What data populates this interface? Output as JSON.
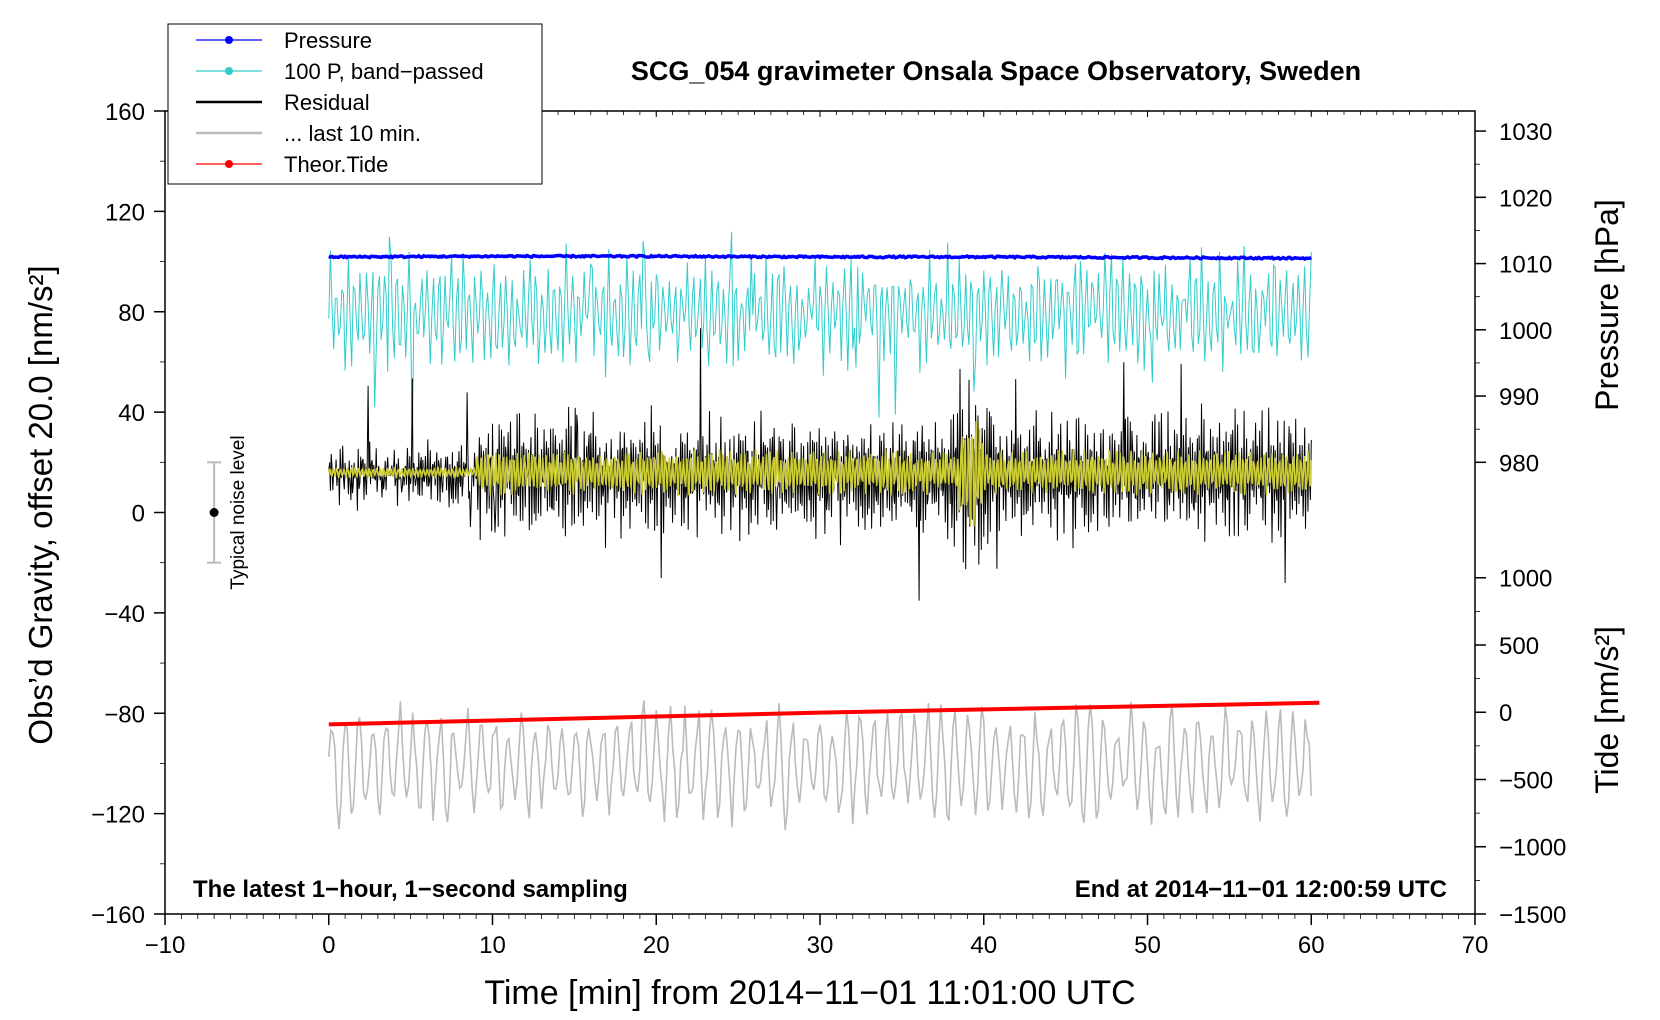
{
  "chart_data": {
    "type": "line",
    "title": "SCG_054 gravimeter Onsala Space Observatory, Sweden",
    "xlabel": "Time [min] from 2014−11−01 11:01:00 UTC",
    "ylabel_left": "Obs’d Gravity, offset 20.0 [nm/s²]",
    "ylabel_right_top": "Pressure [hPa]",
    "ylabel_right_bottom": "Tide [nm/s²]",
    "xlim": [
      -10,
      70
    ],
    "ylim_left": [
      -160,
      160
    ],
    "x_ticks": [
      -10,
      0,
      10,
      20,
      30,
      40,
      50,
      60,
      70
    ],
    "x_tick_labels": [
      "−10",
      "0",
      "10",
      "20",
      "30",
      "40",
      "50",
      "60",
      "70"
    ],
    "y_left_ticks": [
      -160,
      -120,
      -80,
      -40,
      0,
      40,
      80,
      120,
      160
    ],
    "y_left_tick_labels": [
      "−160",
      "−120",
      "−80",
      "−40",
      "0",
      "40",
      "80",
      "120",
      "160"
    ],
    "pressure_axis": {
      "note": "right axis, upper part",
      "ticks": [
        980,
        990,
        1000,
        1010,
        1020,
        1030
      ],
      "tick_labels": [
        "980",
        "990",
        "1000",
        "1010",
        "1020",
        "1030"
      ],
      "gravity_equiv": {
        "980": 20,
        "1030": 152
      }
    },
    "tide_axis": {
      "note": "right axis, lower part",
      "ticks": [
        -1500,
        -1000,
        -500,
        0,
        500,
        1000
      ],
      "tick_labels": [
        "−1500",
        "−1000",
        "−500",
        "0",
        "500",
        "1000"
      ],
      "gravity_equiv": {
        "-1500": -160,
        "1000": -26
      }
    },
    "legend": [
      {
        "label": "Pressure",
        "color": "#0000ff",
        "marker": "dot"
      },
      {
        "label": "100 P, band−passed",
        "color": "#33cccc",
        "marker": "dot"
      },
      {
        "label": "Residual",
        "color": "#000000",
        "marker": "none"
      },
      {
        "label": "... last 10 min.",
        "color": "#bbbbbb",
        "marker": "none"
      },
      {
        "label": "Theor.Tide",
        "color": "#ff0000",
        "marker": "dot"
      }
    ],
    "series": [
      {
        "name": "Pressure",
        "color": "#0000ff",
        "unit": "hPa",
        "x": [
          0,
          10,
          20,
          30,
          40,
          50,
          60
        ],
        "values": [
          1011.0,
          1011.1,
          1011.1,
          1011.0,
          1011.0,
          1010.9,
          1010.8
        ]
      },
      {
        "name": "100 P, band−passed",
        "color": "#33cccc",
        "unit": "nm/s² (gravity axis)",
        "x": [
          0,
          10,
          20,
          30,
          40,
          50,
          60
        ],
        "center": 80,
        "amplitude": 22
      },
      {
        "name": "Residual",
        "color": "#000000",
        "unit": "nm/s²",
        "x": [
          0,
          10,
          20,
          30,
          40,
          50,
          60
        ],
        "center": 15,
        "amplitude": 18
      },
      {
        "name": "Residual (smoothed)",
        "color": "#cccc33",
        "unit": "nm/s²",
        "x": [
          0,
          10,
          20,
          30,
          40,
          50,
          60
        ],
        "center": 16,
        "amplitude": 8
      },
      {
        "name": "... last 10 min.",
        "color": "#bbbbbb",
        "unit": "nm/s²",
        "x": [
          0,
          10,
          20,
          30,
          40,
          50,
          60
        ],
        "center": -100,
        "amplitude": 18
      },
      {
        "name": "Theor.Tide",
        "color": "#ff0000",
        "unit": "nm/s²",
        "x": [
          0,
          30,
          60.5
        ],
        "values": [
          -90,
          -3,
          70
        ]
      }
    ],
    "noise_marker": {
      "x": -7,
      "center": 0,
      "low": -20,
      "high": 20,
      "label": "Typical noise level"
    },
    "annotations": {
      "bottom_left": "The latest 1−hour, 1−second sampling",
      "bottom_right": "End at 2014−11−01 12:00:59 UTC"
    }
  }
}
